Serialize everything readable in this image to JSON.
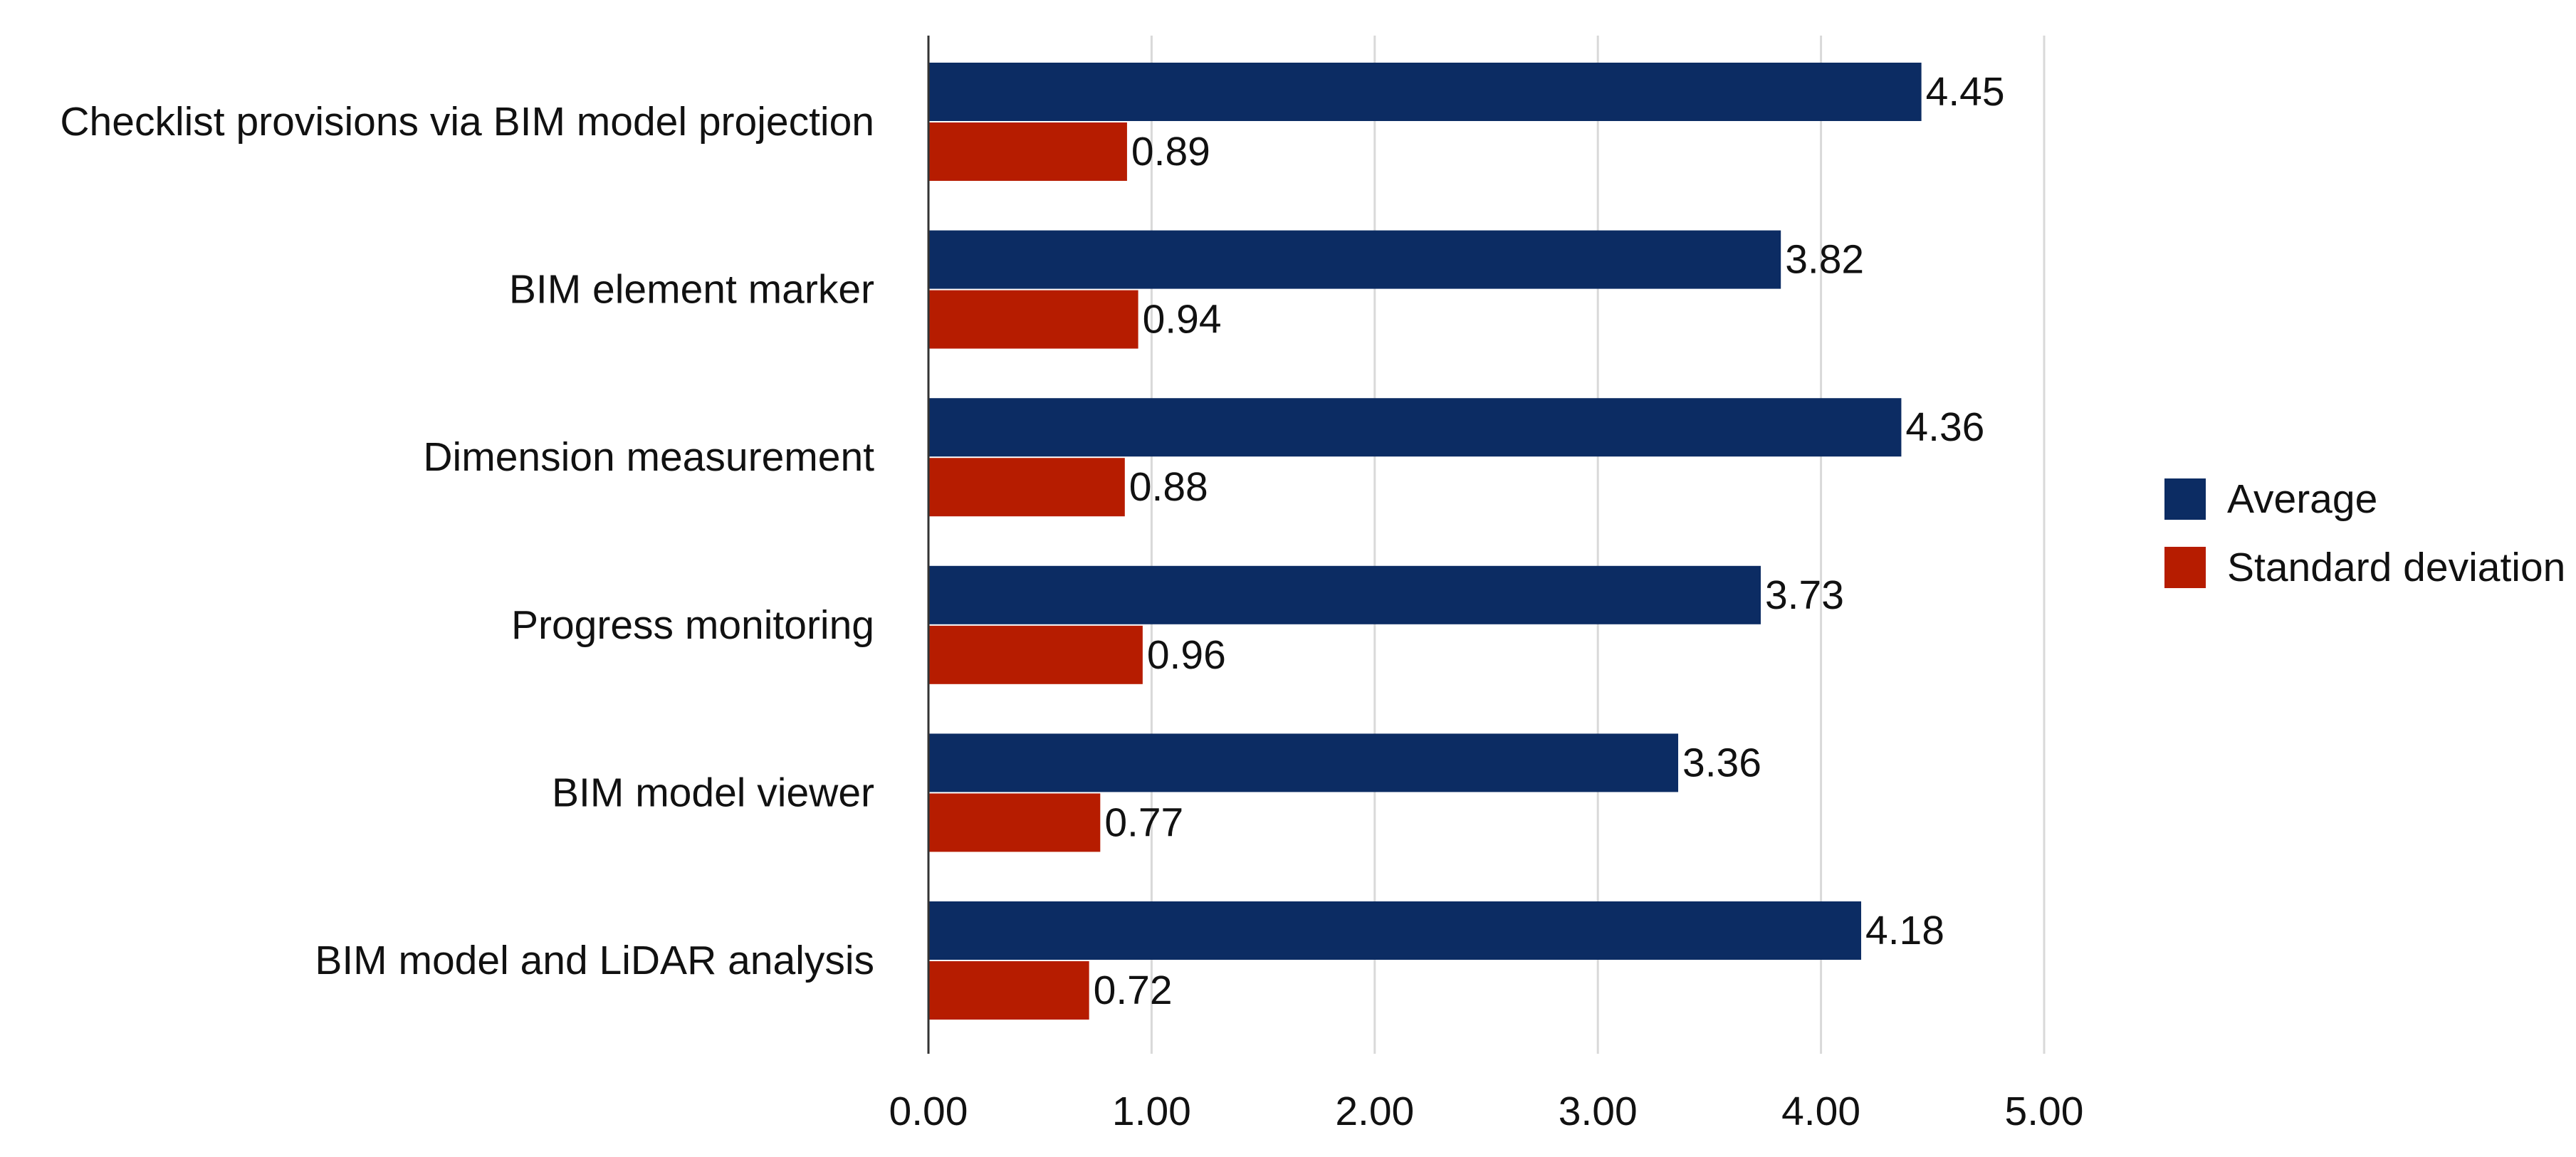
{
  "chart_data": {
    "type": "bar",
    "orientation": "horizontal",
    "title": "",
    "xlabel": "",
    "ylabel": "",
    "categories": [
      "Checklist provisions via BIM model projection",
      "BIM element marker",
      "Dimension measurement",
      "Progress monitoring",
      "BIM model viewer",
      "BIM model and LiDAR analysis"
    ],
    "series": [
      {
        "name": "Average",
        "color": "#0c2c63",
        "values": [
          4.45,
          3.82,
          4.36,
          3.73,
          3.36,
          4.18
        ]
      },
      {
        "name": "Standard deviation",
        "color": "#b61c00",
        "values": [
          0.89,
          0.94,
          0.88,
          0.96,
          0.77,
          0.72
        ]
      }
    ],
    "value_labels": [
      [
        "4.45",
        "3.82",
        "4.36",
        "3.73",
        "3.36",
        "4.18"
      ],
      [
        "0.89",
        "0.94",
        "0.88",
        "0.96",
        "0.77",
        "0.72"
      ]
    ],
    "xlim": [
      0,
      5
    ],
    "xticks": [
      "0.00",
      "1.00",
      "2.00",
      "3.00",
      "4.00",
      "5.00"
    ],
    "grid": "vertical",
    "legend_position": "right"
  }
}
